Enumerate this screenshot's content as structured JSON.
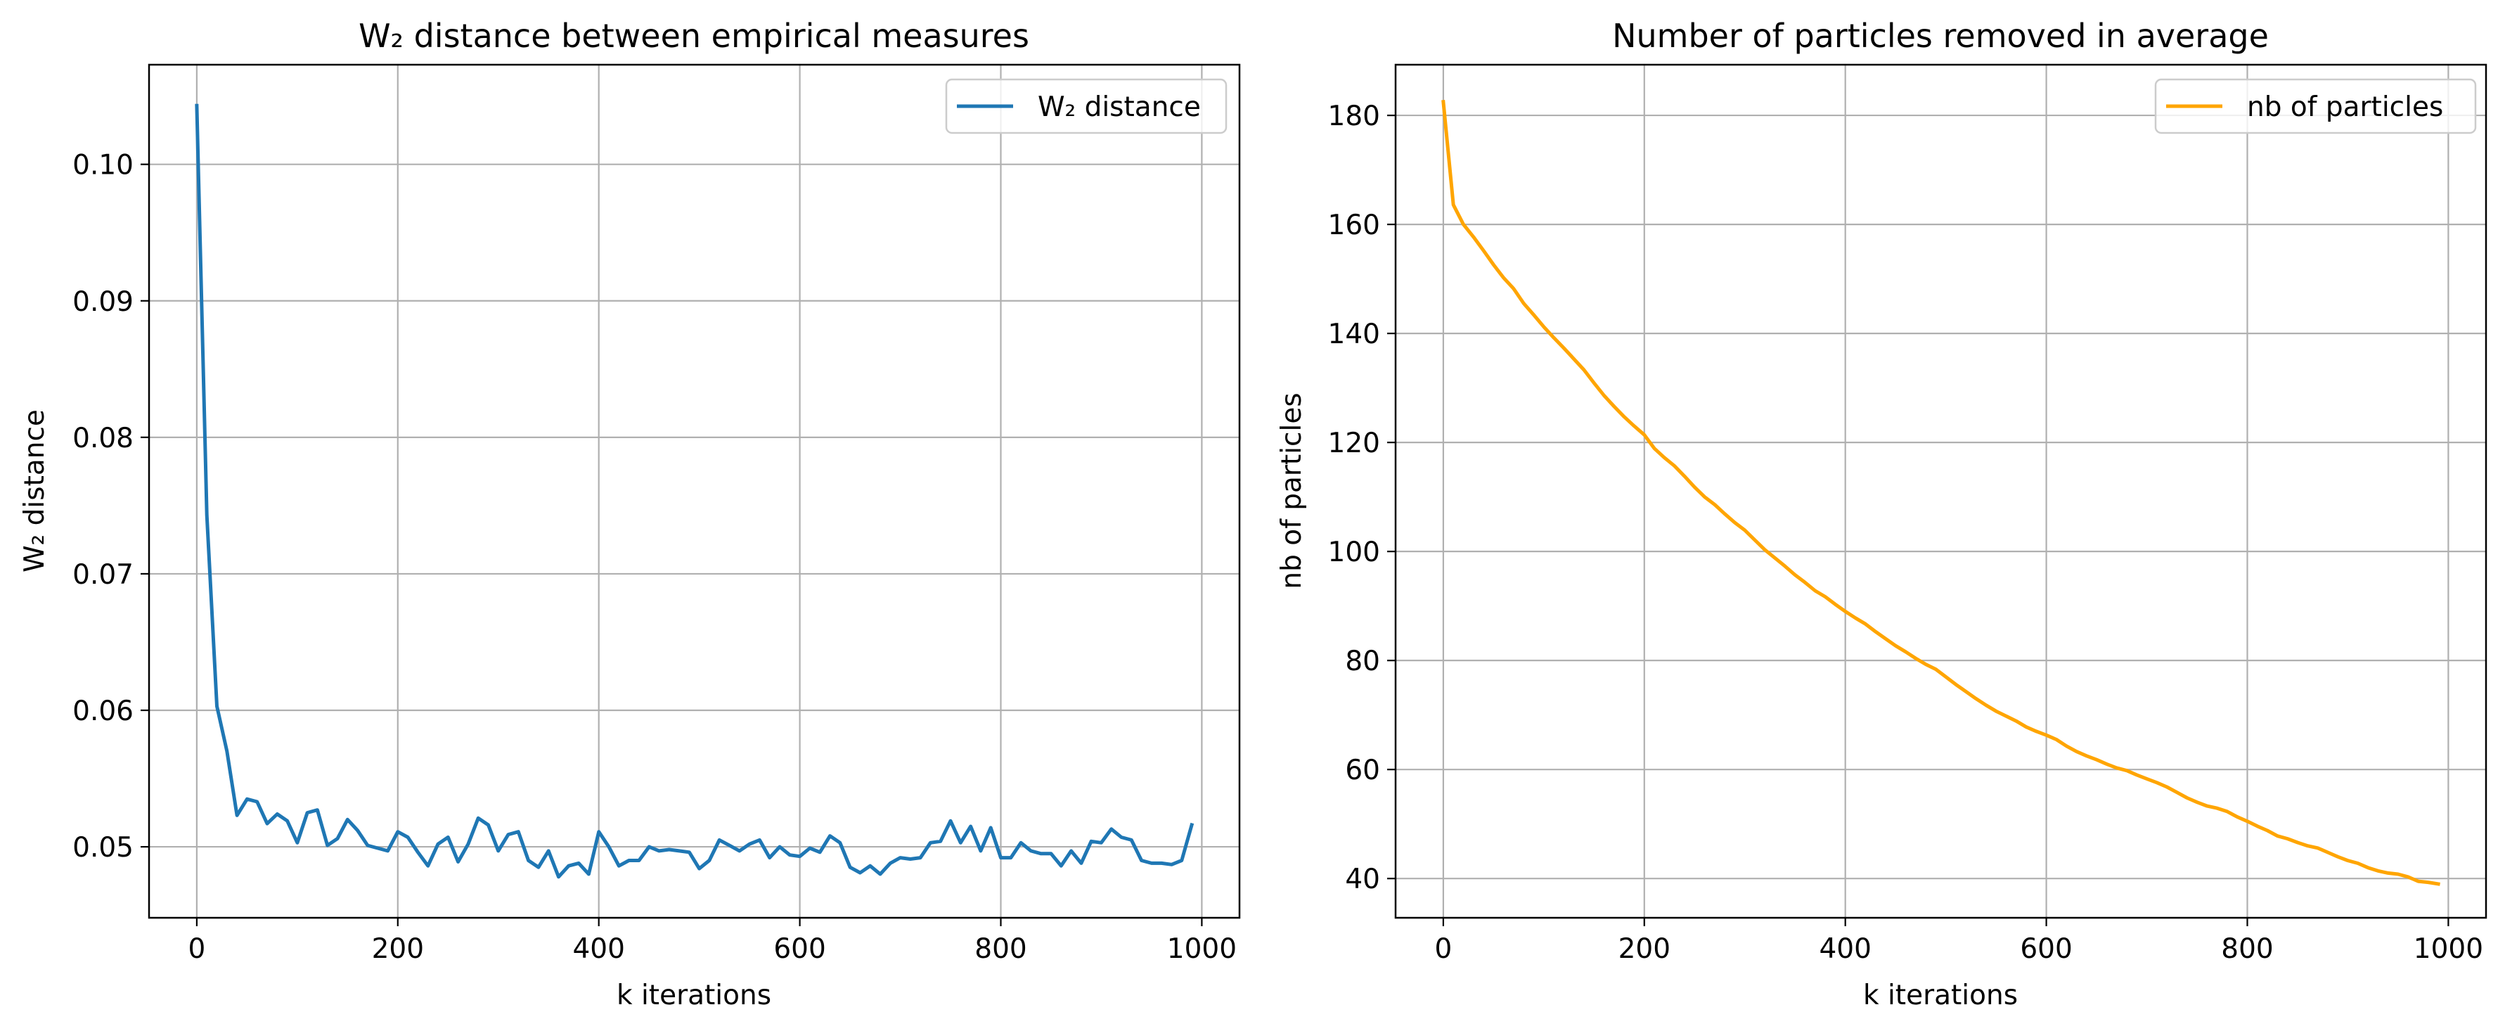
{
  "chart_data": [
    {
      "type": "line",
      "title": "W₂ distance between empirical measures",
      "xlabel": "k iterations",
      "ylabel": "W₂ distance",
      "xlim": [
        -47.5,
        1037.5
      ],
      "ylim": [
        0.0448,
        0.1073
      ],
      "xticks": [
        0,
        200,
        400,
        600,
        800,
        1000
      ],
      "xtick_labels": [
        "0",
        "200",
        "400",
        "600",
        "800",
        "1000"
      ],
      "yticks": [
        0.05,
        0.06,
        0.07,
        0.08,
        0.09,
        0.1
      ],
      "ytick_labels": [
        "0.05",
        "0.06",
        "0.07",
        "0.08",
        "0.09",
        "0.10"
      ],
      "grid": true,
      "legend_position": "upper right",
      "series": [
        {
          "name": "W₂ distance",
          "color": "#1f77b4",
          "x": [
            0,
            10,
            20,
            30,
            40,
            50,
            60,
            70,
            80,
            90,
            100,
            110,
            120,
            130,
            140,
            150,
            160,
            170,
            180,
            190,
            200,
            210,
            220,
            230,
            240,
            250,
            260,
            270,
            280,
            290,
            300,
            310,
            320,
            330,
            340,
            350,
            360,
            370,
            380,
            390,
            400,
            410,
            420,
            430,
            440,
            450,
            460,
            470,
            480,
            490,
            500,
            510,
            520,
            530,
            540,
            550,
            560,
            570,
            580,
            590,
            600,
            610,
            620,
            630,
            640,
            650,
            660,
            670,
            680,
            690,
            700,
            710,
            720,
            730,
            740,
            750,
            760,
            770,
            780,
            790,
            800,
            810,
            820,
            830,
            840,
            850,
            860,
            870,
            880,
            890,
            900,
            910,
            920,
            930,
            940,
            950,
            960,
            970,
            980,
            990
          ],
          "y": [
            0.1043,
            0.0743,
            0.0603,
            0.057,
            0.0523,
            0.0535,
            0.0533,
            0.0517,
            0.0524,
            0.0519,
            0.0503,
            0.0525,
            0.0527,
            0.0501,
            0.0506,
            0.052,
            0.0512,
            0.0501,
            0.0499,
            0.0497,
            0.0511,
            0.0507,
            0.0496,
            0.0486,
            0.0502,
            0.0507,
            0.0489,
            0.0502,
            0.0521,
            0.0516,
            0.0497,
            0.0509,
            0.0511,
            0.049,
            0.0485,
            0.0497,
            0.0478,
            0.0486,
            0.0488,
            0.048,
            0.0511,
            0.05,
            0.0486,
            0.049,
            0.049,
            0.05,
            0.0497,
            0.0498,
            0.0497,
            0.0496,
            0.0484,
            0.049,
            0.0505,
            0.0501,
            0.0497,
            0.0502,
            0.0505,
            0.0492,
            0.05,
            0.0494,
            0.0493,
            0.0499,
            0.0496,
            0.0508,
            0.0503,
            0.0485,
            0.0481,
            0.0486,
            0.048,
            0.0488,
            0.0492,
            0.0491,
            0.0492,
            0.0503,
            0.0504,
            0.0519,
            0.0503,
            0.0515,
            0.0497,
            0.0514,
            0.0492,
            0.0492,
            0.0503,
            0.0497,
            0.0495,
            0.0495,
            0.0486,
            0.0497,
            0.0488,
            0.0504,
            0.0503,
            0.0513,
            0.0507,
            0.0505,
            0.049,
            0.0488,
            0.0488,
            0.0487,
            0.049,
            0.0516
          ]
        }
      ]
    },
    {
      "type": "line",
      "title": "Number of particles removed in average",
      "xlabel": "k iterations",
      "ylabel": "nb of particles",
      "xlim": [
        -47.5,
        1037.5
      ],
      "ylim": [
        32.8,
        189.3
      ],
      "xticks": [
        0,
        200,
        400,
        600,
        800,
        1000
      ],
      "xtick_labels": [
        "0",
        "200",
        "400",
        "600",
        "800",
        "1000"
      ],
      "yticks": [
        40,
        60,
        80,
        100,
        120,
        140,
        160,
        180
      ],
      "ytick_labels": [
        "40",
        "60",
        "80",
        "100",
        "120",
        "140",
        "160",
        "180"
      ],
      "grid": true,
      "legend_position": "upper right",
      "series": [
        {
          "name": "nb of particles",
          "color": "#ffa500",
          "x": [
            0,
            10,
            20,
            30,
            40,
            50,
            60,
            70,
            80,
            90,
            100,
            110,
            120,
            130,
            140,
            150,
            160,
            170,
            180,
            190,
            200,
            210,
            220,
            230,
            240,
            250,
            260,
            270,
            280,
            290,
            300,
            310,
            320,
            330,
            340,
            350,
            360,
            370,
            380,
            390,
            400,
            410,
            420,
            430,
            440,
            450,
            460,
            470,
            480,
            490,
            500,
            510,
            520,
            530,
            540,
            550,
            560,
            570,
            580,
            590,
            600,
            610,
            620,
            630,
            640,
            650,
            660,
            670,
            680,
            690,
            700,
            710,
            720,
            730,
            740,
            750,
            760,
            770,
            780,
            790,
            800,
            810,
            820,
            830,
            840,
            850,
            860,
            870,
            880,
            890,
            900,
            910,
            920,
            930,
            940,
            950,
            960,
            970,
            980,
            990
          ],
          "y": [
            182.5,
            163.6,
            160.0,
            157.7,
            155.2,
            152.6,
            150.2,
            148.2,
            145.5,
            143.4,
            141.2,
            139.2,
            137.3,
            135.3,
            133.3,
            130.9,
            128.6,
            126.6,
            124.7,
            123.0,
            121.4,
            118.9,
            117.2,
            115.7,
            113.8,
            111.8,
            110.0,
            108.6,
            106.9,
            105.3,
            103.9,
            102.1,
            100.3,
            98.8,
            97.3,
            95.7,
            94.3,
            92.8,
            91.7,
            90.3,
            89.0,
            87.8,
            86.7,
            85.3,
            84.0,
            82.7,
            81.6,
            80.4,
            79.3,
            78.4,
            77.0,
            75.6,
            74.3,
            73.0,
            71.8,
            70.7,
            69.8,
            68.9,
            67.8,
            67.0,
            66.3,
            65.5,
            64.3,
            63.3,
            62.5,
            61.8,
            61.0,
            60.3,
            59.8,
            59.0,
            58.3,
            57.6,
            56.8,
            55.8,
            54.8,
            54.0,
            53.3,
            52.9,
            52.3,
            51.3,
            50.5,
            49.6,
            48.8,
            47.8,
            47.3,
            46.6,
            46.0,
            45.6,
            44.8,
            44.0,
            43.3,
            42.8,
            42.0,
            41.4,
            41.0,
            40.8,
            40.3,
            39.5,
            39.3,
            39.0
          ]
        }
      ]
    }
  ]
}
